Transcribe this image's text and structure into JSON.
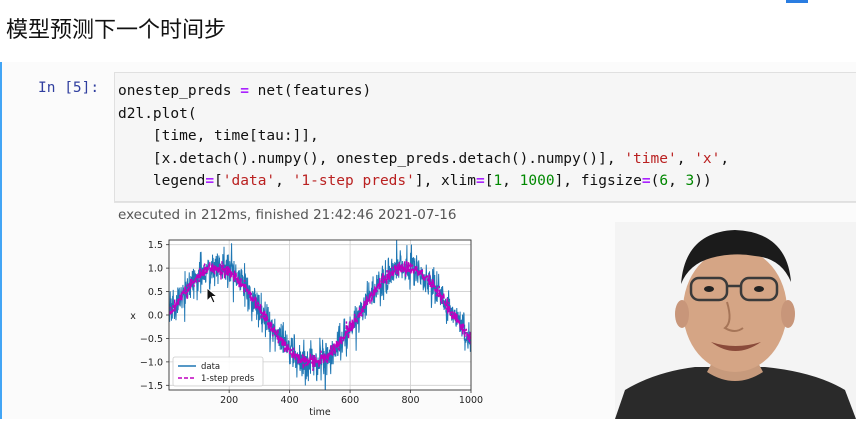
{
  "page": {
    "heading": "模型预测下一个时间步"
  },
  "cell": {
    "prompt": "In [5]:",
    "code_lines": [
      [
        {
          "t": "onestep_preds ",
          "c": "nm"
        },
        {
          "t": "=",
          "c": "op"
        },
        {
          "t": " net(features)",
          "c": "nm"
        }
      ],
      [
        {
          "t": "d2l.plot(",
          "c": "nm"
        }
      ],
      [
        {
          "t": "    [time, time[tau:]],",
          "c": "nm"
        }
      ],
      [
        {
          "t": "    [x.detach().numpy(), onestep_preds.detach().numpy()], ",
          "c": "nm"
        },
        {
          "t": "'time'",
          "c": "str"
        },
        {
          "t": ", ",
          "c": "nm"
        },
        {
          "t": "'x'",
          "c": "str"
        },
        {
          "t": ",",
          "c": "nm"
        }
      ],
      [
        {
          "t": "    legend",
          "c": "nm"
        },
        {
          "t": "=",
          "c": "op"
        },
        {
          "t": "[",
          "c": "nm"
        },
        {
          "t": "'data'",
          "c": "str"
        },
        {
          "t": ", ",
          "c": "nm"
        },
        {
          "t": "'1-step preds'",
          "c": "str"
        },
        {
          "t": "], xlim",
          "c": "nm"
        },
        {
          "t": "=",
          "c": "op"
        },
        {
          "t": "[",
          "c": "nm"
        },
        {
          "t": "1",
          "c": "num"
        },
        {
          "t": ", ",
          "c": "nm"
        },
        {
          "t": "1000",
          "c": "num"
        },
        {
          "t": "], figsize",
          "c": "nm"
        },
        {
          "t": "=",
          "c": "op"
        },
        {
          "t": "(",
          "c": "nm"
        },
        {
          "t": "6",
          "c": "num"
        },
        {
          "t": ", ",
          "c": "nm"
        },
        {
          "t": "3",
          "c": "num"
        },
        {
          "t": "))",
          "c": "nm"
        }
      ]
    ],
    "exec_info": "executed in 212ms, finished 21:42:46 2021-07-16"
  },
  "chart_data": {
    "type": "line",
    "xlabel": "time",
    "ylabel": "x",
    "xlim": [
      1,
      1000
    ],
    "ylim": [
      -1.6,
      1.6
    ],
    "xticks": [
      200,
      400,
      600,
      800,
      1000
    ],
    "yticks": [
      -1.5,
      -1.0,
      -0.5,
      0.0,
      0.5,
      1.0,
      1.5
    ],
    "ytick_labels": [
      "−1.5",
      "−1.0",
      "−0.5",
      "0.0",
      "0.5",
      "1.0",
      "1.5"
    ],
    "grid": true,
    "legend": "bottom-left",
    "series": [
      {
        "name": "data",
        "style": "solid",
        "color": "#1f77b4",
        "formula": "sin(0.01*t) + noise(0.2)",
        "x_range": [
          1,
          1000
        ],
        "noise_std": 0.2
      },
      {
        "name": "1-step preds",
        "style": "dashed",
        "color": "#bf00bf",
        "formula": "sin(0.01*t)",
        "x_range": [
          5,
          1000
        ]
      }
    ]
  },
  "colors": {
    "cell_border": "#42a5f5",
    "prompt": "#303f9f",
    "operator": "#aa22ff",
    "string": "#ba2121",
    "number": "#008800"
  },
  "icons": {
    "cursor": "arrow-cursor-icon"
  }
}
